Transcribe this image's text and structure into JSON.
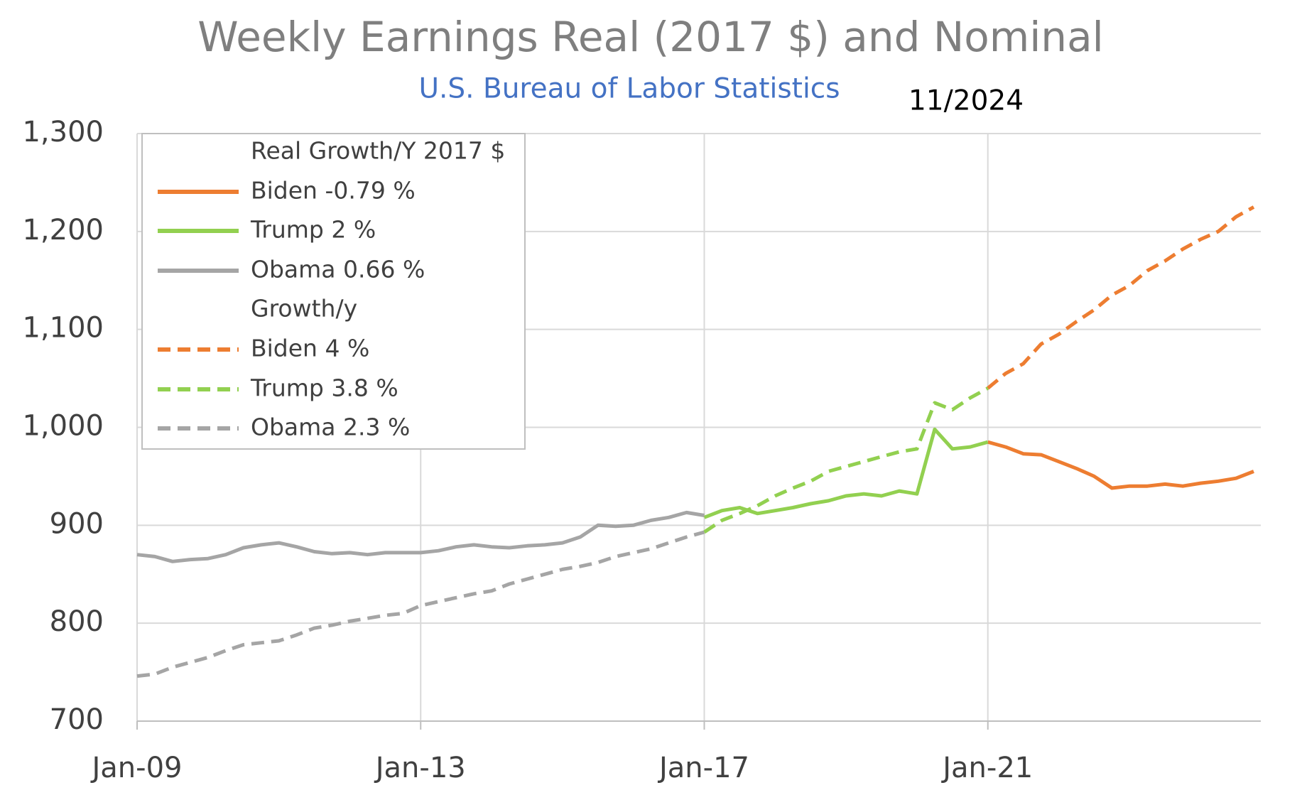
{
  "chart_data": {
    "type": "line",
    "title": "Weekly Earnings Real (2017 $) and Nominal",
    "subtitle": "U.S. Bureau of Labor Statistics",
    "annotation": "11/2024",
    "legend_titles": [
      "Real Growth/Y 2017 $",
      "Growth/y"
    ],
    "x": [
      2009,
      2009.25,
      2009.5,
      2009.75,
      2010,
      2010.25,
      2010.5,
      2010.75,
      2011,
      2011.25,
      2011.5,
      2011.75,
      2012,
      2012.25,
      2012.5,
      2012.75,
      2013,
      2013.25,
      2013.5,
      2013.75,
      2014,
      2014.25,
      2014.5,
      2014.75,
      2015,
      2015.25,
      2015.5,
      2015.75,
      2016,
      2016.25,
      2016.5,
      2016.75,
      2017,
      2017.25,
      2017.5,
      2017.75,
      2018,
      2018.25,
      2018.5,
      2018.75,
      2019,
      2019.25,
      2019.5,
      2019.75,
      2020,
      2020.25,
      2020.5,
      2020.75,
      2021,
      2021.25,
      2021.5,
      2021.75,
      2022,
      2022.25,
      2022.5,
      2022.75,
      2023,
      2023.25,
      2023.5,
      2023.75,
      2024,
      2024.25,
      2024.5,
      2024.75
    ],
    "xlim": [
      2009,
      2024.85
    ],
    "xticks": [
      {
        "value": 2009,
        "label": "Jan-09"
      },
      {
        "value": 2013,
        "label": "Jan-13"
      },
      {
        "value": 2017,
        "label": "Jan-17"
      },
      {
        "value": 2021,
        "label": "Jan-21"
      }
    ],
    "ylim": [
      700,
      1300
    ],
    "yticks": [
      700,
      800,
      900,
      {
        "value": 1000,
        "label": "1,000"
      },
      {
        "value": 1100,
        "label": "1,100"
      },
      {
        "value": 1200,
        "label": "1,200"
      },
      {
        "value": 1300,
        "label": "1,300"
      }
    ],
    "grid": true,
    "legend": "upper left",
    "series": [
      {
        "name": "Biden -0.79 %",
        "color": "#ed7d31",
        "dash": false,
        "values": [
          null,
          null,
          null,
          null,
          null,
          null,
          null,
          null,
          null,
          null,
          null,
          null,
          null,
          null,
          null,
          null,
          null,
          null,
          null,
          null,
          null,
          null,
          null,
          null,
          null,
          null,
          null,
          null,
          null,
          null,
          null,
          null,
          null,
          null,
          null,
          null,
          null,
          null,
          null,
          null,
          null,
          null,
          null,
          null,
          null,
          null,
          null,
          null,
          985,
          980,
          973,
          972,
          965,
          958,
          950,
          938,
          940,
          940,
          942,
          940,
          943,
          945,
          948,
          955
        ]
      },
      {
        "name": "Trump 2 %",
        "color": "#92d050",
        "dash": false,
        "values": [
          null,
          null,
          null,
          null,
          null,
          null,
          null,
          null,
          null,
          null,
          null,
          null,
          null,
          null,
          null,
          null,
          null,
          null,
          null,
          null,
          null,
          null,
          null,
          null,
          null,
          null,
          null,
          null,
          null,
          null,
          null,
          null,
          908,
          915,
          918,
          912,
          915,
          918,
          922,
          925,
          930,
          932,
          930,
          935,
          932,
          998,
          978,
          980,
          985,
          null,
          null,
          null,
          null,
          null,
          null,
          null,
          null,
          null,
          null,
          null,
          null,
          null,
          null,
          null
        ]
      },
      {
        "name": "Obama 0.66 %",
        "color": "#a5a5a5",
        "dash": false,
        "values": [
          870,
          868,
          863,
          865,
          866,
          870,
          877,
          880,
          882,
          878,
          873,
          871,
          872,
          870,
          872,
          872,
          872,
          874,
          878,
          880,
          878,
          877,
          879,
          880,
          882,
          888,
          900,
          899,
          900,
          905,
          908,
          913,
          910,
          null,
          null,
          null,
          null,
          null,
          null,
          null,
          null,
          null,
          null,
          null,
          null,
          null,
          null,
          null,
          null,
          null,
          null,
          null,
          null,
          null,
          null,
          null,
          null,
          null,
          null,
          null,
          null,
          null,
          null,
          null
        ]
      },
      {
        "name": "Biden 4 %",
        "color": "#ed7d31",
        "dash": true,
        "values": [
          null,
          null,
          null,
          null,
          null,
          null,
          null,
          null,
          null,
          null,
          null,
          null,
          null,
          null,
          null,
          null,
          null,
          null,
          null,
          null,
          null,
          null,
          null,
          null,
          null,
          null,
          null,
          null,
          null,
          null,
          null,
          null,
          null,
          null,
          null,
          null,
          null,
          null,
          null,
          null,
          null,
          null,
          null,
          null,
          null,
          null,
          null,
          null,
          1040,
          1055,
          1065,
          1085,
          1095,
          1108,
          1120,
          1135,
          1145,
          1160,
          1170,
          1182,
          1192,
          1200,
          1215,
          1225
        ]
      },
      {
        "name": "Trump 3.8 %",
        "color": "#92d050",
        "dash": true,
        "values": [
          null,
          null,
          null,
          null,
          null,
          null,
          null,
          null,
          null,
          null,
          null,
          null,
          null,
          null,
          null,
          null,
          null,
          null,
          null,
          null,
          null,
          null,
          null,
          null,
          null,
          null,
          null,
          null,
          null,
          null,
          null,
          null,
          893,
          905,
          912,
          920,
          930,
          938,
          945,
          955,
          960,
          965,
          970,
          975,
          978,
          1025,
          1018,
          1030,
          1040,
          null,
          null,
          null,
          null,
          null,
          null,
          null,
          null,
          null,
          null,
          null,
          null,
          null,
          null,
          null
        ]
      },
      {
        "name": "Obama 2.3 %",
        "color": "#a5a5a5",
        "dash": true,
        "values": [
          746,
          748,
          755,
          760,
          765,
          772,
          778,
          780,
          782,
          788,
          795,
          798,
          802,
          805,
          808,
          810,
          818,
          822,
          826,
          830,
          833,
          840,
          845,
          850,
          855,
          858,
          862,
          868,
          872,
          876,
          882,
          888,
          893,
          null,
          null,
          null,
          null,
          null,
          null,
          null,
          null,
          null,
          null,
          null,
          null,
          null,
          null,
          null,
          null,
          null,
          null,
          null,
          null,
          null,
          null,
          null,
          null,
          null,
          null,
          null,
          null,
          null,
          null,
          null
        ]
      }
    ]
  }
}
